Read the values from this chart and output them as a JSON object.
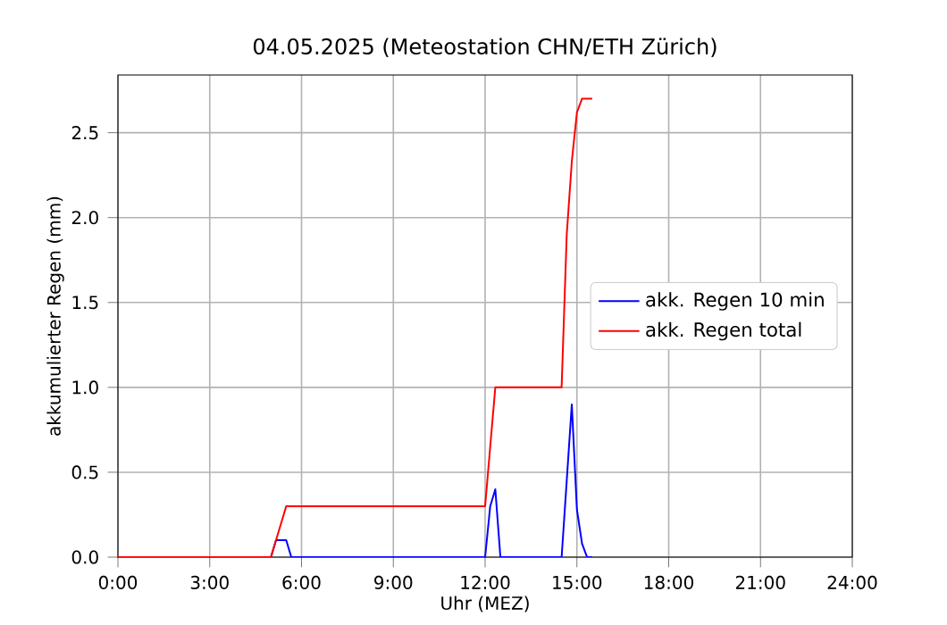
{
  "chart_data": {
    "type": "line",
    "title": "04.05.2025  (Meteostation CHN/ETH Zürich)",
    "xlabel": "Uhr (MEZ)",
    "ylabel": "akkumulierter Regen (mm)",
    "series": [
      {
        "name": "akk. Regen 10 min",
        "color": "#0000ff",
        "x": [
          0,
          5,
          5.167,
          5.5,
          5.667,
          12,
          12.167,
          12.333,
          12.5,
          14.5,
          14.667,
          14.833,
          15,
          15.167,
          15.333,
          15.5
        ],
        "values": [
          0,
          0,
          0.1,
          0.1,
          0,
          0,
          0.3,
          0.4,
          0,
          0,
          0.45,
          0.9,
          0.28,
          0.08,
          0,
          0
        ]
      },
      {
        "name": "akk. Regen total",
        "color": "#ff0000",
        "x": [
          0,
          5,
          5.5,
          12,
          12.333,
          14.5,
          14.667,
          14.833,
          15,
          15.167,
          15.5
        ],
        "values": [
          0,
          0,
          0.3,
          0.3,
          1.0,
          1.0,
          1.9,
          2.33,
          2.62,
          2.7,
          2.7
        ]
      }
    ],
    "xlim": [
      0,
      24
    ],
    "ylim": [
      0,
      2.84
    ],
    "xticks": [
      {
        "value": 0,
        "label": "0:00"
      },
      {
        "value": 3,
        "label": "3:00"
      },
      {
        "value": 6,
        "label": "6:00"
      },
      {
        "value": 9,
        "label": "9:00"
      },
      {
        "value": 12,
        "label": "12:00"
      },
      {
        "value": 15,
        "label": "15:00"
      },
      {
        "value": 18,
        "label": "18:00"
      },
      {
        "value": 21,
        "label": "21:00"
      },
      {
        "value": 24,
        "label": "24:00"
      }
    ],
    "yticks": [
      {
        "value": 0,
        "label": "0.0"
      },
      {
        "value": 0.5,
        "label": "0.5"
      },
      {
        "value": 1.0,
        "label": "1.0"
      },
      {
        "value": 1.5,
        "label": "1.5"
      },
      {
        "value": 2.0,
        "label": "2.0"
      },
      {
        "value": 2.5,
        "label": "2.5"
      }
    ],
    "grid": true,
    "legend": "right",
    "marker": "none",
    "line_style": "solid"
  }
}
